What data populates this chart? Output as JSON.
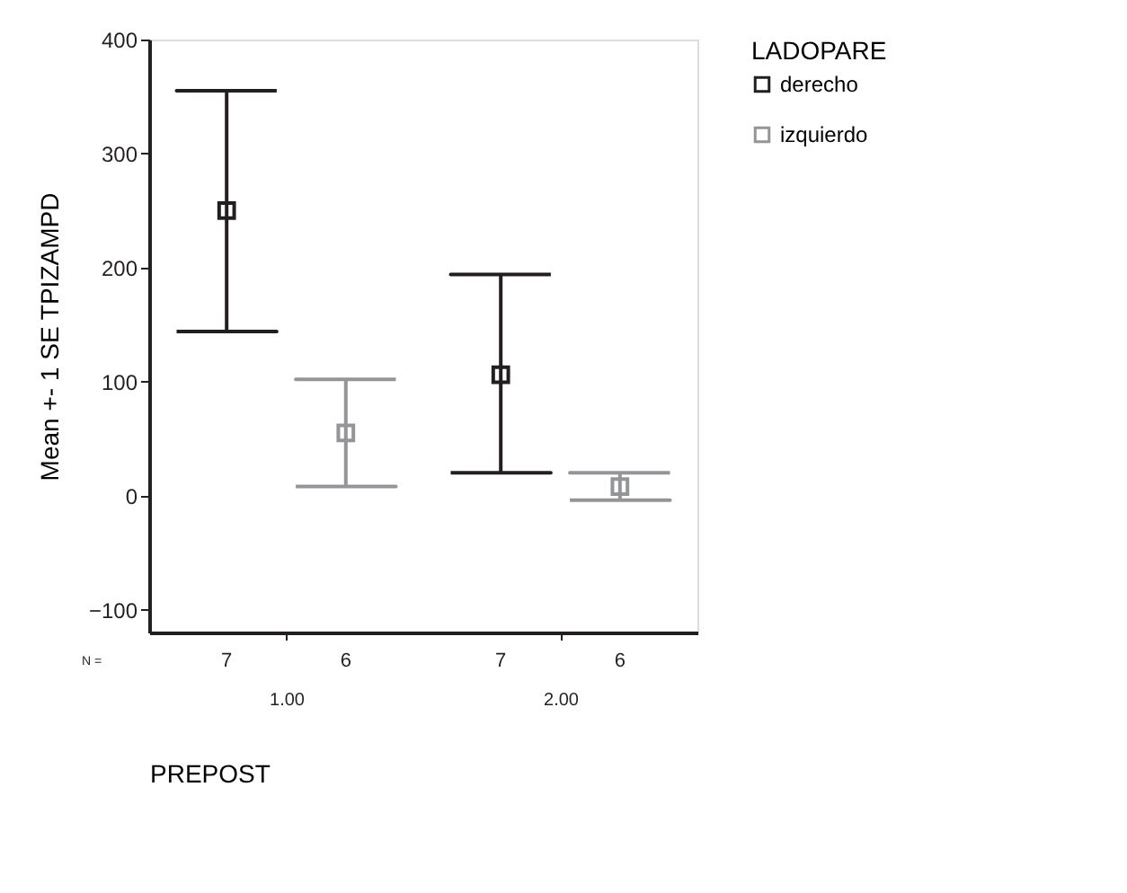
{
  "chart_data": {
    "type": "scatter",
    "xlabel": "PREPOST",
    "ylabel": "Mean +- 1 SE TPIZAMPD",
    "legend_title": "LADOPARE",
    "categories": [
      "1.00",
      "2.00"
    ],
    "series": [
      {
        "name": "derecho",
        "color": "#231f20",
        "values": [
          250,
          106
        ],
        "errors": [
          [
            144,
            355
          ],
          [
            20,
            194
          ]
        ]
      },
      {
        "name": "izquierdo",
        "color": "#939598",
        "values": [
          55,
          8
        ],
        "errors": [
          [
            8,
            102
          ],
          [
            -4,
            20
          ]
        ]
      }
    ],
    "ylim": [
      -120,
      400
    ],
    "yticks": [
      -100,
      0,
      100,
      200,
      300,
      400
    ],
    "marker": "square",
    "grid": false,
    "legend": "right",
    "annotations": [
      "N =",
      "7",
      "6",
      "7",
      "6"
    ]
  }
}
